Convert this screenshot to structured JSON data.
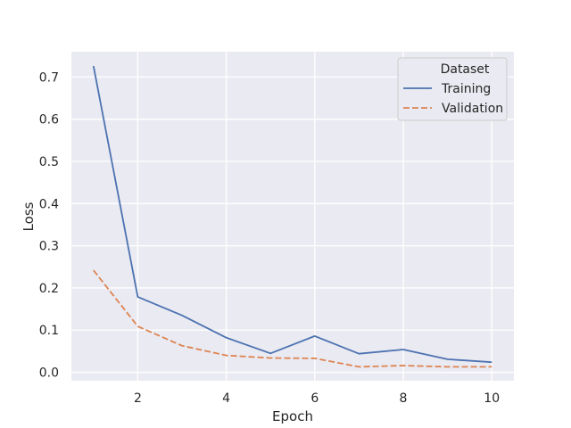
{
  "chart_data": {
    "type": "line",
    "title": "",
    "xlabel": "Epoch",
    "ylabel": "Loss",
    "xlim": [
      0.5,
      10.5
    ],
    "ylim": [
      -0.02,
      0.76
    ],
    "xticks": [
      2,
      4,
      6,
      8,
      10
    ],
    "yticks": [
      0.0,
      0.1,
      0.2,
      0.3,
      0.4,
      0.5,
      0.6,
      0.7
    ],
    "ytick_labels": [
      "0.0",
      "0.1",
      "0.2",
      "0.3",
      "0.4",
      "0.5",
      "0.6",
      "0.7"
    ],
    "grid": true,
    "x": [
      1,
      2,
      3,
      4,
      5,
      6,
      7,
      8,
      9,
      10
    ],
    "legend": {
      "title": "Dataset",
      "placement": "top-right"
    },
    "series": [
      {
        "name": "Training",
        "color": "#4c72b0",
        "style": "solid",
        "values": [
          0.726,
          0.179,
          0.135,
          0.082,
          0.045,
          0.086,
          0.044,
          0.054,
          0.031,
          0.024
        ]
      },
      {
        "name": "Validation",
        "color": "#dd8452",
        "style": "dashed",
        "values": [
          0.242,
          0.109,
          0.063,
          0.04,
          0.034,
          0.033,
          0.013,
          0.016,
          0.013,
          0.013
        ]
      }
    ]
  }
}
